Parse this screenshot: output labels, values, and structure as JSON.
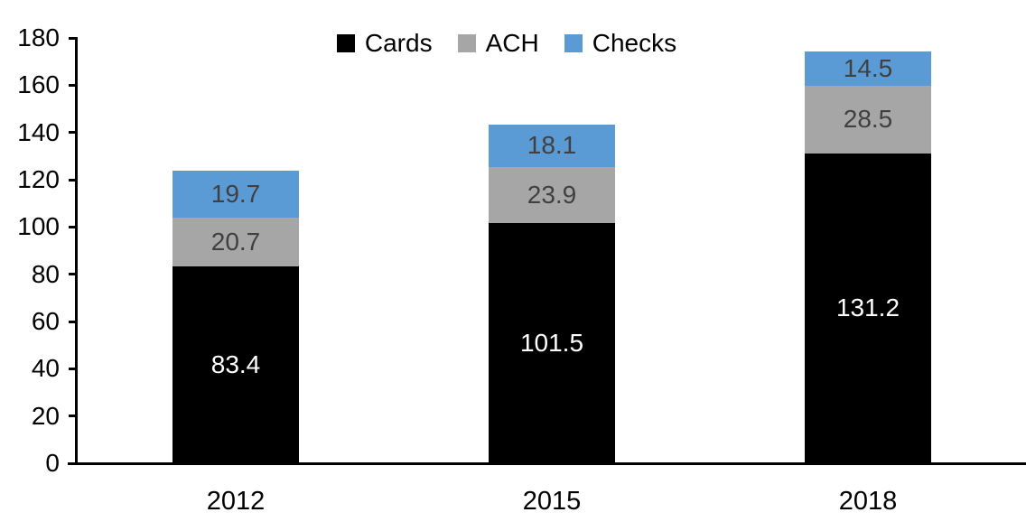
{
  "chart_data": {
    "type": "bar",
    "stacked": true,
    "title": "",
    "xlabel": "",
    "ylabel": "",
    "categories": [
      "2012",
      "2015",
      "2018"
    ],
    "series": [
      {
        "name": "Cards",
        "color": "#000000",
        "label_color": "#FFFFFF",
        "values": [
          83.4,
          101.5,
          131.2
        ]
      },
      {
        "name": "ACH",
        "color": "#A6A6A6",
        "label_color": "#404040",
        "values": [
          20.7,
          23.9,
          28.5
        ]
      },
      {
        "name": "Checks",
        "color": "#5B9BD5",
        "label_color": "#404040",
        "values": [
          19.7,
          18.1,
          14.5
        ]
      }
    ],
    "totals": [
      123.8,
      143.5,
      174.2
    ],
    "ylim": [
      0,
      180
    ],
    "ytick_step": 20,
    "ytick_labels": [
      "0",
      "20",
      "40",
      "60",
      "80",
      "100",
      "120",
      "140",
      "160",
      "180"
    ],
    "grid": false,
    "legend_position": "top",
    "legend": [
      "Cards",
      "ACH",
      "Checks"
    ],
    "axis_color": "#000000",
    "background": "#FFFFFF"
  }
}
